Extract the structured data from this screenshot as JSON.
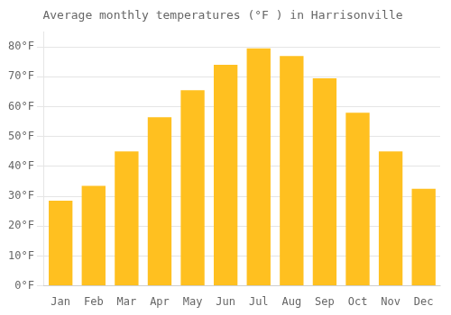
{
  "chart_data": {
    "type": "bar",
    "title": "Average monthly temperatures (°F ) in Harrisonville",
    "categories": [
      "Jan",
      "Feb",
      "Mar",
      "Apr",
      "May",
      "Jun",
      "Jul",
      "Aug",
      "Sep",
      "Oct",
      "Nov",
      "Dec"
    ],
    "values": [
      28.5,
      33.5,
      45.0,
      56.5,
      65.5,
      74.0,
      79.5,
      77.0,
      69.5,
      58.0,
      45.0,
      32.5
    ],
    "color": "#FFC020",
    "ylim": [
      0,
      85
    ],
    "yticks": [
      {
        "value": 0,
        "label": "0°F"
      },
      {
        "value": 10,
        "label": "10°F"
      },
      {
        "value": 20,
        "label": "20°F"
      },
      {
        "value": 30,
        "label": "30°F"
      },
      {
        "value": 40,
        "label": "40°F"
      },
      {
        "value": 50,
        "label": "50°F"
      },
      {
        "value": 60,
        "label": "60°F"
      },
      {
        "value": 70,
        "label": "70°F"
      },
      {
        "value": 80,
        "label": "80°F"
      }
    ],
    "grid": true
  }
}
